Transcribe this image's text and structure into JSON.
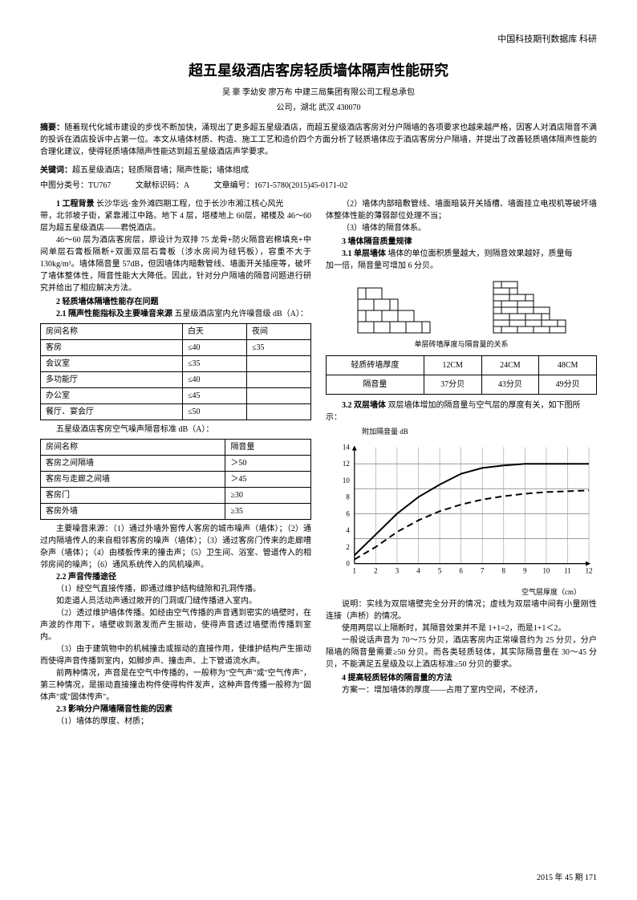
{
  "header_right": "中国科技期刊数据库  科研",
  "title": "超五星级酒店客房轻质墙体隔声性能研究",
  "authors": "吴 豪  李幼安  廖万布  中建三局集团有限公司工程总承包",
  "affiliation": "公司，湖北 武汉  430070",
  "abstract_label": "摘要：",
  "abstract_text": "随着现代化城市建设的步伐不断加快，涌现出了更多超五星级酒店，而超五星级酒店客房对分户隔墙的各项要求也越来越严格，因客人对酒店隔音不满的投诉在酒店投诉中占第一位。本文从墙体材质、构造、施工工艺和造价四个方面分析了轻质墙体应于酒店客房分户隔墙，并提出了改善轻质墙体隔声性能的合理化建议，使得轻质墙体隔声性能达到超五星级酒店声学要求。",
  "keywords_label": "关键词：",
  "keywords_text": "超五星级酒店；轻质隔音墙；隔声性能；墙体组成",
  "class_no": "中图分类号：TU767",
  "doc_code": "文献标识码：A",
  "article_no": "文章编号：1671-5780(2015)45-0171-02",
  "left": {
    "s1_head": "1 工程背景",
    "s1_text": "长沙华远·金外滩四期工程，位于长沙市湘江核心风光",
    "s1_p1": "带，北邻坡子街，紧靠湘江中路。地下 4 层，塔楼地上 60层，裙楼及 46～60 层为超五星级酒店——君悦酒店。",
    "s1_p2": "46～60 层为酒店客房层，原设计为双排 75 龙骨+防火隔音岩棉填充+中间单层石膏板隔断+双面双层石膏板（涉水房间为硅钙板），容重不大于 130kg/m³。墙体隔音量 57dB，但因墙体内暗敷管线、墙面开关插座等，破坏了墙体整体性，隔音性能大大降低。因此，针对分户隔墙的隔音问题进行研究并给出了相应解决方法。",
    "s2_head": "2 轻质墙体隔墙性能存在问题",
    "s21_head": "2.1 隔声性能指标及主要噪音来源",
    "s21_text": "五星级酒店室内允许噪音级 dB（A）：",
    "table1": {
      "h1": "房间名称",
      "h2": "白天",
      "h3": "夜间",
      "r1c1": "客房",
      "r1c2": "≤40",
      "r1c3": "≤35",
      "r2c1": "会议室",
      "r2c2": "≤35",
      "r2c3": "",
      "r3c1": "多功能厅",
      "r3c2": "≤40",
      "r3c3": "",
      "r4c1": "办公室",
      "r4c2": "≤45",
      "r4c3": "",
      "r5c1": "餐厅、宴会厅",
      "r5c2": "≤50",
      "r5c3": ""
    },
    "t2_title": "五星级酒店客房空气噪声隔音标准 dB（A）：",
    "table2": {
      "h1": "房间名称",
      "h2": "隔音量",
      "r1c1": "客房之间隔墙",
      "r1c2": "＞50",
      "r2c1": "客房与走廊之间墙",
      "r2c2": "＞45",
      "r3c1": "客房门",
      "r3c2": "≥30",
      "r4c1": "客房外墙",
      "r4c2": "≥35"
    },
    "noise_src": "主要噪音来源：（1）通过外墙外窗传人客房的城市噪声（墙体）；（2）通过内隔墙传人的来自相邻客房的噪声（墙体）；（3）通过客房门传来的走廊嘈杂声（墙体）；（4）由楼板传来的撞击声；（5）卫生间、浴室、管道传入的相邻房间的噪声；（6）通风系统传入的风机噪声。",
    "s22_head": "2.2 声音传播途径",
    "s22_p1": "（1）经空气直接传播，即通过维护结构缝隙和孔洞传播。",
    "s22_p2": "如走道人员活动声通过敞开的门洞或门缝传播进入室内。",
    "s22_p3": "（2）透过维护墙体传播。如经由空气传播的声音遇到密实的墙壁时，在声波的作用下，墙壁收到激发而产生振动，使得声音透过墙壁而传播到室内。",
    "s22_p4": "（3）由于建筑物中的机械撞击或振动的直接作用，使维护结构产生振动而使得声音传播到室内，如脚步声、撞击声、上下管道流水声。",
    "s22_p5": "前两种情况，声音是在空气中传播的，一般称为\"空气声\"或\"空气传声\"，第三种情况，是振动直接撞击构件使得构件发声，这种声音传播一般称为\"固体声\"或\"固体传声\"。",
    "s23_head": "2.3 影响分户隔墙隔音性能的因素",
    "s23_p1": "（1）墙体的厚度、材质；"
  },
  "right": {
    "p1": "（2）墙体内部暗敷管线、墙面暗装开关插槽、墙面挂立电视机等破坏墙体整体性能的薄弱部位处理不当；",
    "p2": "（3）墙体的隔音体系。",
    "s3_head": "3 墙体隔音质量规律",
    "s31_head": "3.1 单层墙体",
    "s31_text": "墙体的单位面积质量越大，则隔音效果越好，质量每",
    "s31_p2": "加一倍，隔音量可增加 6 分贝。",
    "fig1_caption": "单层砖墙厚度与隔音量的关系",
    "table3": {
      "h1": "轻质砖墙厚度",
      "h2": "12CM",
      "h3": "24CM",
      "h4": "48CM",
      "r1c1": "隔音量",
      "r1c2": "37分贝",
      "r1c3": "43分贝",
      "r1c4": "49分贝"
    },
    "s32_head": "3.2 双层墙体",
    "s32_text": "双层墙体增加的隔音量与空气层的厚度有关，如下图所",
    "s32_p2": "示：",
    "chart_ylabel": "附加隔音量 dB",
    "chart_xlabel": "空气层厚度（cm）",
    "chart": {
      "x_ticks": [
        1,
        2,
        3,
        4,
        5,
        6,
        7,
        8,
        9,
        10,
        11,
        12
      ],
      "y_ticks": [
        0,
        2,
        4,
        6,
        8,
        10,
        12,
        14
      ],
      "y_major": [
        0,
        3,
        6,
        9,
        12
      ],
      "solid_line": [
        [
          1,
          1
        ],
        [
          2,
          3.5
        ],
        [
          3,
          6
        ],
        [
          4,
          8
        ],
        [
          5,
          9.5
        ],
        [
          6,
          10.8
        ],
        [
          7,
          11.5
        ],
        [
          8,
          11.8
        ],
        [
          9,
          12
        ],
        [
          10,
          12
        ],
        [
          11,
          12
        ],
        [
          12,
          12
        ]
      ],
      "dashed_line": [
        [
          1,
          0.5
        ],
        [
          2,
          2
        ],
        [
          3,
          3.8
        ],
        [
          4,
          5.2
        ],
        [
          5,
          6.3
        ],
        [
          6,
          7.1
        ],
        [
          7,
          7.7
        ],
        [
          8,
          8.1
        ],
        [
          9,
          8.4
        ],
        [
          10,
          8.6
        ],
        [
          11,
          8.7
        ],
        [
          12,
          8.8
        ]
      ],
      "grid_color": "#999999",
      "line_color": "#000000"
    },
    "chart_note": "说明：实线为双层墙壁完全分开的情况；虚线为双层墙中间有小量刚性连接（声桥）的情况。",
    "p_use": "使用两层以上隔断时，其隔音效果并不是 1+1=2，而是1+1＜2。",
    "p_general": "一般说话声音为 70～75 分贝，酒店客房内正常噪音约为 25 分贝，分户隔墙的隔音量需要≥50 分贝。而各类轻质轻体，其实际隔音量在 30～45 分贝，不能满足五星级及以上酒店标准≥50 分贝的要求。",
    "s4_head": "4 提高轻质轻体的隔音量的方法",
    "s4_p1": "方案一：增加墙体的厚度——占用了室内空间，不经济，"
  },
  "footer": "2015 年  45 期  171"
}
